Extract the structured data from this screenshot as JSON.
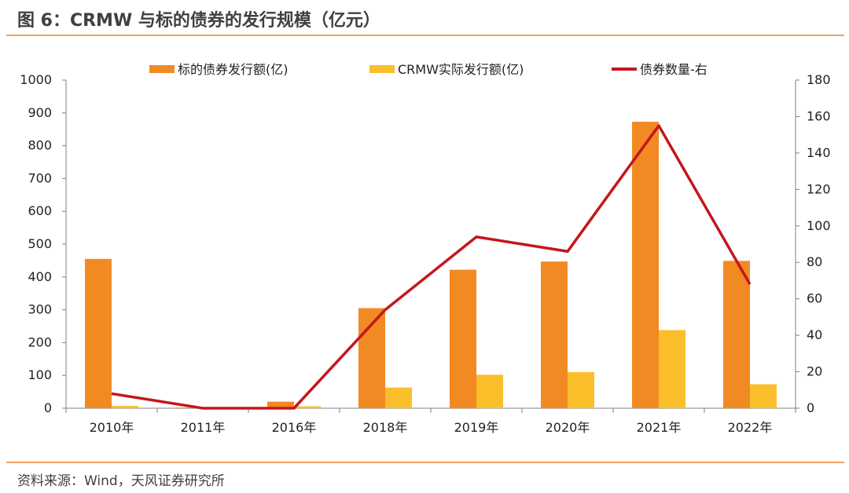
{
  "title": "图 6：CRMW 与标的债券的发行规模（亿元）",
  "source": "资料来源：Wind，天风证券研究所",
  "colors": {
    "rule": "#f0a060",
    "bond_bar": "#f28a24",
    "crmw_bar": "#fbbf2c",
    "count_line": "#c4161c"
  },
  "chart_data": {
    "type": "bar",
    "categories": [
      "2010年",
      "2011年",
      "2016年",
      "2018年",
      "2019年",
      "2020年",
      "2021年",
      "2022年"
    ],
    "series": [
      {
        "name": "标的债券发行额(亿)",
        "type": "bar",
        "axis": "left",
        "values": [
          455,
          2,
          20,
          305,
          422,
          447,
          873,
          449
        ]
      },
      {
        "name": "CRMW实际发行额(亿)",
        "type": "bar",
        "axis": "left",
        "values": [
          7,
          1,
          6,
          63,
          102,
          110,
          238,
          73
        ]
      },
      {
        "name": "债券数量-右",
        "type": "line",
        "axis": "right",
        "values": [
          8,
          0,
          0,
          54,
          94,
          86,
          155,
          68
        ]
      }
    ],
    "y_left": {
      "min": 0,
      "max": 1000,
      "step": 100,
      "ticks": [
        "0",
        "100",
        "200",
        "300",
        "400",
        "500",
        "600",
        "700",
        "800",
        "900",
        "1000"
      ]
    },
    "y_right": {
      "min": 0,
      "max": 180,
      "step": 20,
      "ticks": [
        "0",
        "20",
        "40",
        "60",
        "80",
        "100",
        "120",
        "140",
        "160",
        "180"
      ]
    },
    "grid": false,
    "legend": "top"
  }
}
